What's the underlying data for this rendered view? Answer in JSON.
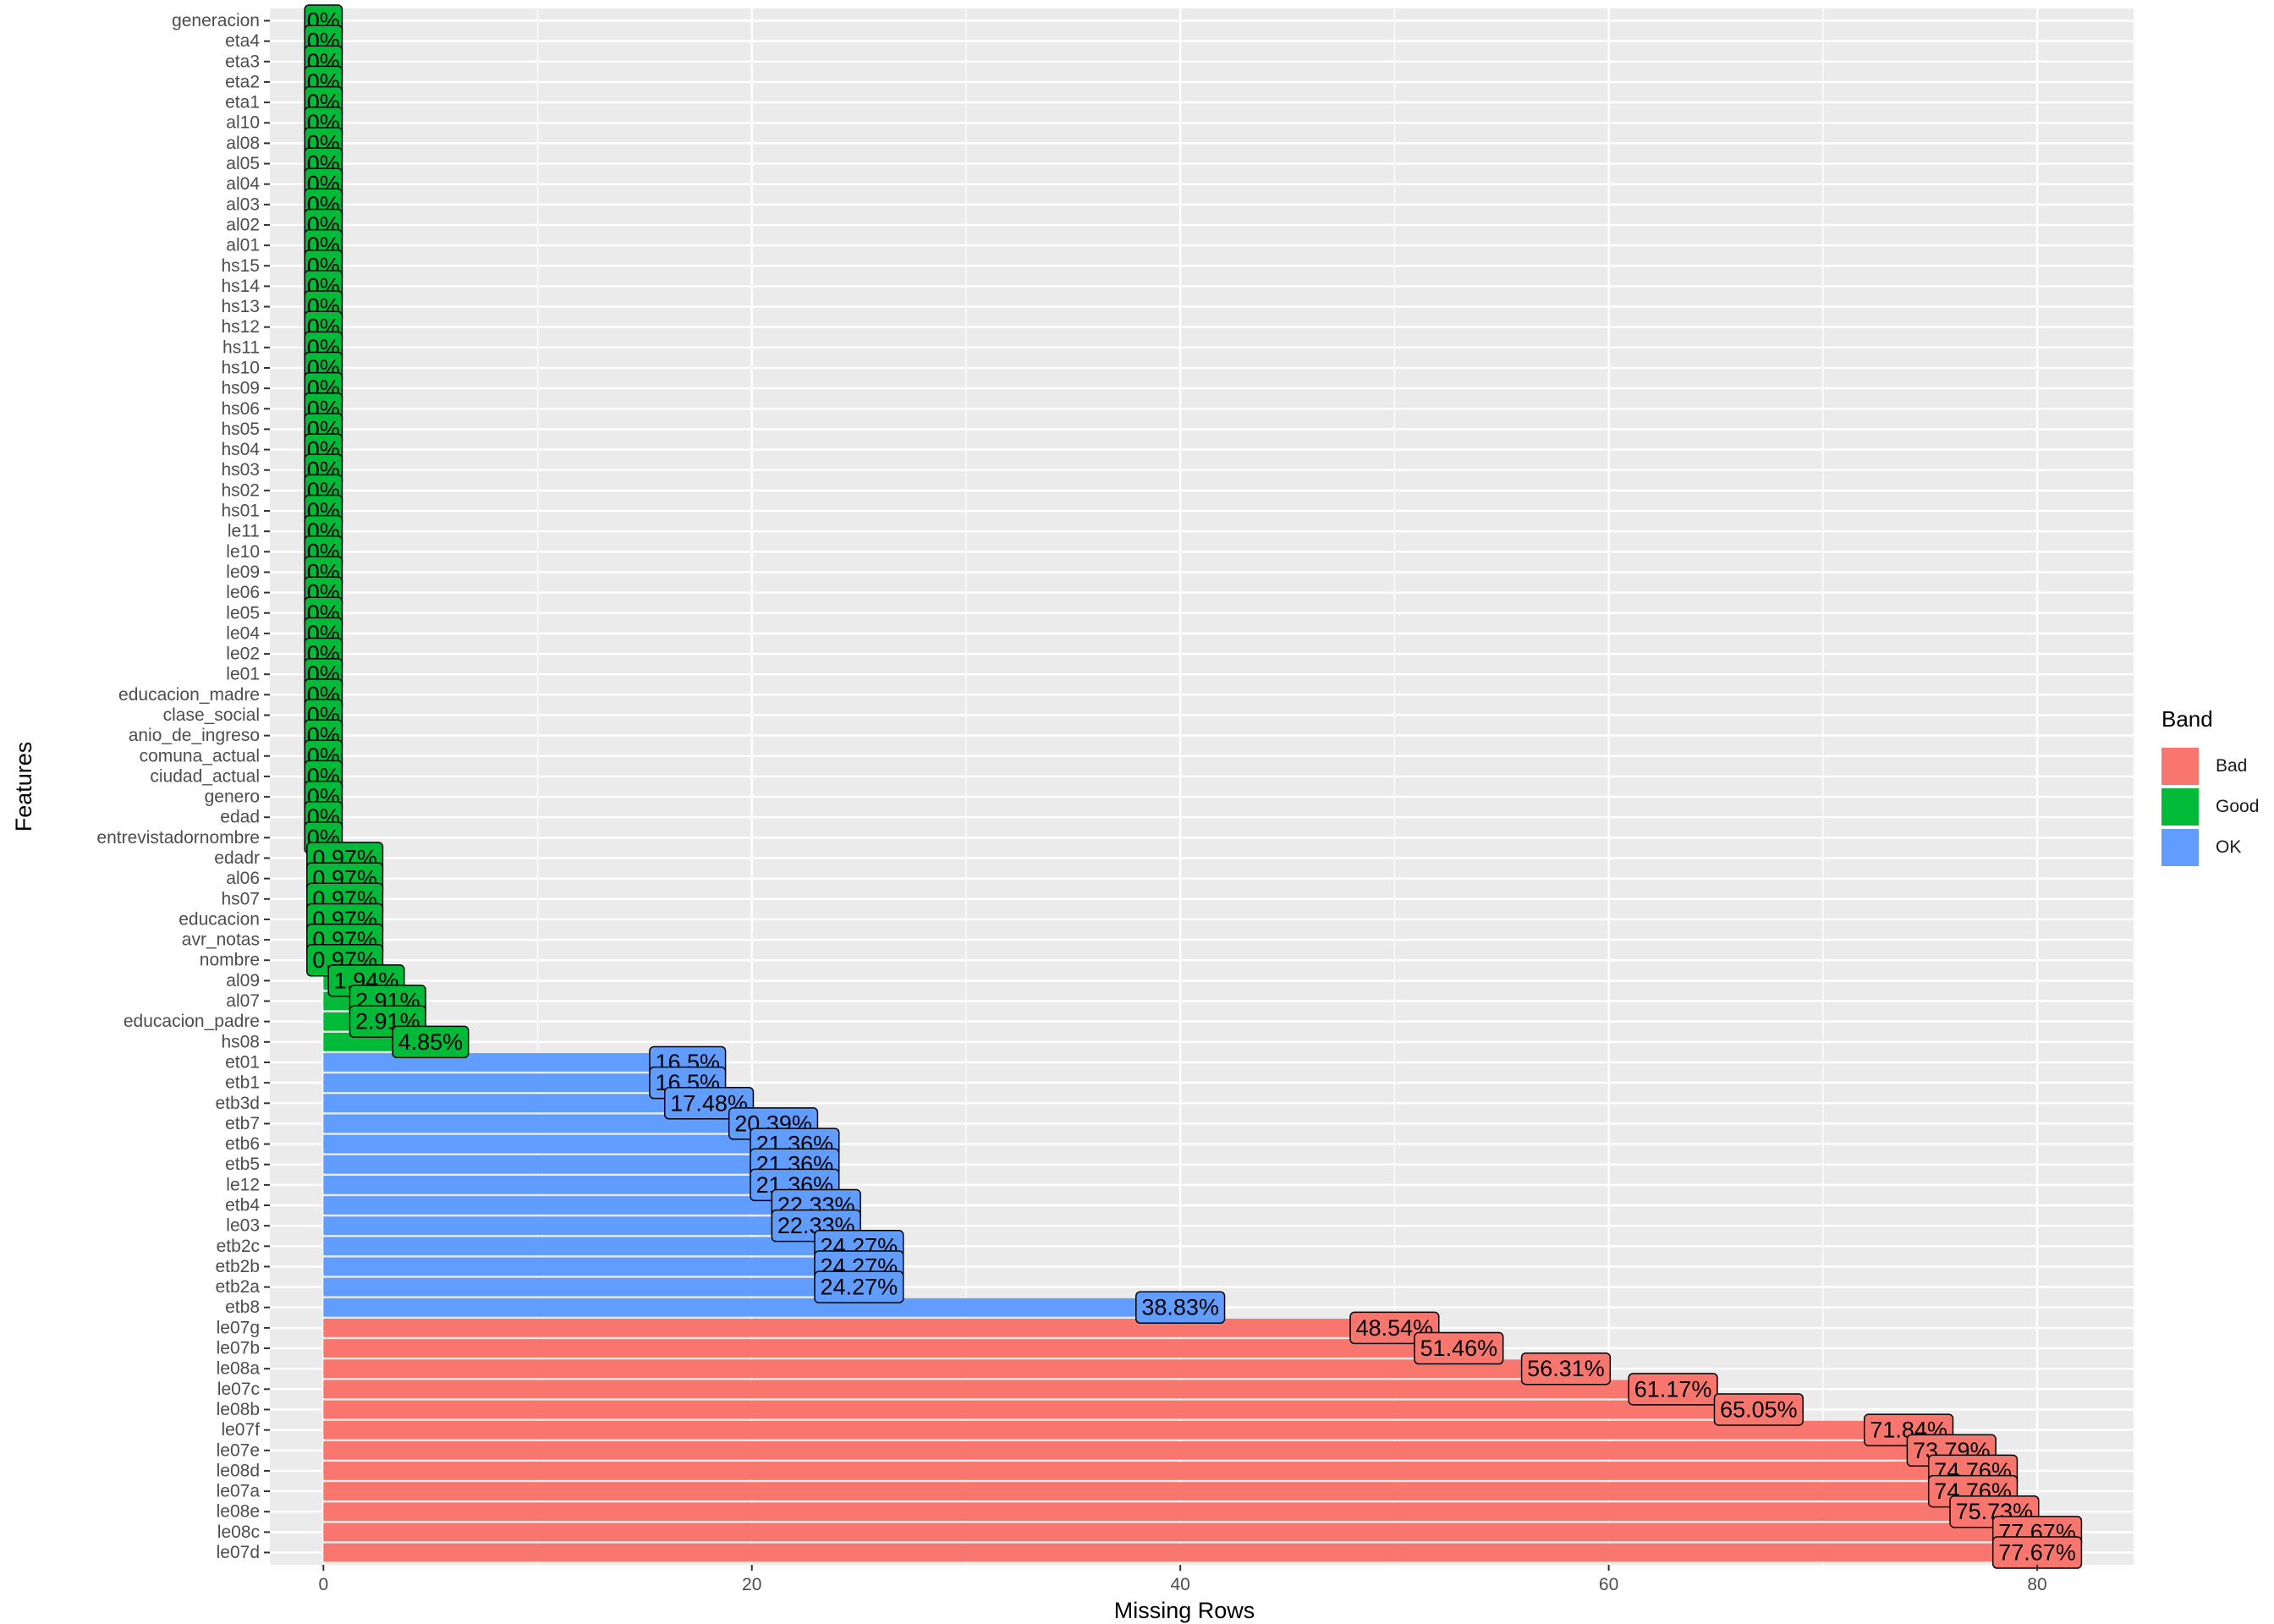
{
  "chart_data": {
    "type": "bar",
    "orientation": "horizontal",
    "xlabel": "Missing Rows",
    "ylabel": "Features",
    "xlim": [
      -2.5,
      84.5
    ],
    "xticks": [
      0,
      20,
      40,
      60,
      80
    ],
    "grid": true,
    "legend": {
      "title": "Band",
      "position": "right"
    },
    "bands": [
      {
        "name": "Bad",
        "color": "#F8766D"
      },
      {
        "name": "Good",
        "color": "#00BA38"
      },
      {
        "name": "OK",
        "color": "#619CFF"
      }
    ],
    "bars": [
      {
        "feature": "generacion",
        "value": 0,
        "label": "0%",
        "band": "Good"
      },
      {
        "feature": "eta4",
        "value": 0,
        "label": "0%",
        "band": "Good"
      },
      {
        "feature": "eta3",
        "value": 0,
        "label": "0%",
        "band": "Good"
      },
      {
        "feature": "eta2",
        "value": 0,
        "label": "0%",
        "band": "Good"
      },
      {
        "feature": "eta1",
        "value": 0,
        "label": "0%",
        "band": "Good"
      },
      {
        "feature": "al10",
        "value": 0,
        "label": "0%",
        "band": "Good"
      },
      {
        "feature": "al08",
        "value": 0,
        "label": "0%",
        "band": "Good"
      },
      {
        "feature": "al05",
        "value": 0,
        "label": "0%",
        "band": "Good"
      },
      {
        "feature": "al04",
        "value": 0,
        "label": "0%",
        "band": "Good"
      },
      {
        "feature": "al03",
        "value": 0,
        "label": "0%",
        "band": "Good"
      },
      {
        "feature": "al02",
        "value": 0,
        "label": "0%",
        "band": "Good"
      },
      {
        "feature": "al01",
        "value": 0,
        "label": "0%",
        "band": "Good"
      },
      {
        "feature": "hs15",
        "value": 0,
        "label": "0%",
        "band": "Good"
      },
      {
        "feature": "hs14",
        "value": 0,
        "label": "0%",
        "band": "Good"
      },
      {
        "feature": "hs13",
        "value": 0,
        "label": "0%",
        "band": "Good"
      },
      {
        "feature": "hs12",
        "value": 0,
        "label": "0%",
        "band": "Good"
      },
      {
        "feature": "hs11",
        "value": 0,
        "label": "0%",
        "band": "Good"
      },
      {
        "feature": "hs10",
        "value": 0,
        "label": "0%",
        "band": "Good"
      },
      {
        "feature": "hs09",
        "value": 0,
        "label": "0%",
        "band": "Good"
      },
      {
        "feature": "hs06",
        "value": 0,
        "label": "0%",
        "band": "Good"
      },
      {
        "feature": "hs05",
        "value": 0,
        "label": "0%",
        "band": "Good"
      },
      {
        "feature": "hs04",
        "value": 0,
        "label": "0%",
        "band": "Good"
      },
      {
        "feature": "hs03",
        "value": 0,
        "label": "0%",
        "band": "Good"
      },
      {
        "feature": "hs02",
        "value": 0,
        "label": "0%",
        "band": "Good"
      },
      {
        "feature": "hs01",
        "value": 0,
        "label": "0%",
        "band": "Good"
      },
      {
        "feature": "le11",
        "value": 0,
        "label": "0%",
        "band": "Good"
      },
      {
        "feature": "le10",
        "value": 0,
        "label": "0%",
        "band": "Good"
      },
      {
        "feature": "le09",
        "value": 0,
        "label": "0%",
        "band": "Good"
      },
      {
        "feature": "le06",
        "value": 0,
        "label": "0%",
        "band": "Good"
      },
      {
        "feature": "le05",
        "value": 0,
        "label": "0%",
        "band": "Good"
      },
      {
        "feature": "le04",
        "value": 0,
        "label": "0%",
        "band": "Good"
      },
      {
        "feature": "le02",
        "value": 0,
        "label": "0%",
        "band": "Good"
      },
      {
        "feature": "le01",
        "value": 0,
        "label": "0%",
        "band": "Good"
      },
      {
        "feature": "educacion_madre",
        "value": 0,
        "label": "0%",
        "band": "Good"
      },
      {
        "feature": "clase_social",
        "value": 0,
        "label": "0%",
        "band": "Good"
      },
      {
        "feature": "anio_de_ingreso",
        "value": 0,
        "label": "0%",
        "band": "Good"
      },
      {
        "feature": "comuna_actual",
        "value": 0,
        "label": "0%",
        "band": "Good"
      },
      {
        "feature": "ciudad_actual",
        "value": 0,
        "label": "0%",
        "band": "Good"
      },
      {
        "feature": "genero",
        "value": 0,
        "label": "0%",
        "band": "Good"
      },
      {
        "feature": "edad",
        "value": 0,
        "label": "0%",
        "band": "Good"
      },
      {
        "feature": "entrevistadornombre",
        "value": 0,
        "label": "0%",
        "band": "Good"
      },
      {
        "feature": "edadr",
        "value": 1,
        "label": "0.97%",
        "band": "Good"
      },
      {
        "feature": "al06",
        "value": 1,
        "label": "0.97%",
        "band": "Good"
      },
      {
        "feature": "hs07",
        "value": 1,
        "label": "0.97%",
        "band": "Good"
      },
      {
        "feature": "educacion",
        "value": 1,
        "label": "0.97%",
        "band": "Good"
      },
      {
        "feature": "avr_notas",
        "value": 1,
        "label": "0.97%",
        "band": "Good"
      },
      {
        "feature": "nombre",
        "value": 1,
        "label": "0.97%",
        "band": "Good"
      },
      {
        "feature": "al09",
        "value": 2,
        "label": "1.94%",
        "band": "Good"
      },
      {
        "feature": "al07",
        "value": 3,
        "label": "2.91%",
        "band": "Good"
      },
      {
        "feature": "educacion_padre",
        "value": 3,
        "label": "2.91%",
        "band": "Good"
      },
      {
        "feature": "hs08",
        "value": 5,
        "label": "4.85%",
        "band": "Good"
      },
      {
        "feature": "et01",
        "value": 17,
        "label": "16.5%",
        "band": "OK"
      },
      {
        "feature": "etb1",
        "value": 17,
        "label": "16.5%",
        "band": "OK"
      },
      {
        "feature": "etb3d",
        "value": 18,
        "label": "17.48%",
        "band": "OK"
      },
      {
        "feature": "etb7",
        "value": 21,
        "label": "20.39%",
        "band": "OK"
      },
      {
        "feature": "etb6",
        "value": 22,
        "label": "21.36%",
        "band": "OK"
      },
      {
        "feature": "etb5",
        "value": 22,
        "label": "21.36%",
        "band": "OK"
      },
      {
        "feature": "le12",
        "value": 22,
        "label": "21.36%",
        "band": "OK"
      },
      {
        "feature": "etb4",
        "value": 23,
        "label": "22.33%",
        "band": "OK"
      },
      {
        "feature": "le03",
        "value": 23,
        "label": "22.33%",
        "band": "OK"
      },
      {
        "feature": "etb2c",
        "value": 25,
        "label": "24.27%",
        "band": "OK"
      },
      {
        "feature": "etb2b",
        "value": 25,
        "label": "24.27%",
        "band": "OK"
      },
      {
        "feature": "etb2a",
        "value": 25,
        "label": "24.27%",
        "band": "OK"
      },
      {
        "feature": "etb8",
        "value": 40,
        "label": "38.83%",
        "band": "OK"
      },
      {
        "feature": "le07g",
        "value": 50,
        "label": "48.54%",
        "band": "Bad"
      },
      {
        "feature": "le07b",
        "value": 53,
        "label": "51.46%",
        "band": "Bad"
      },
      {
        "feature": "le08a",
        "value": 58,
        "label": "56.31%",
        "band": "Bad"
      },
      {
        "feature": "le07c",
        "value": 63,
        "label": "61.17%",
        "band": "Bad"
      },
      {
        "feature": "le08b",
        "value": 67,
        "label": "65.05%",
        "band": "Bad"
      },
      {
        "feature": "le07f",
        "value": 74,
        "label": "71.84%",
        "band": "Bad"
      },
      {
        "feature": "le07e",
        "value": 76,
        "label": "73.79%",
        "band": "Bad"
      },
      {
        "feature": "le08d",
        "value": 77,
        "label": "74.76%",
        "band": "Bad"
      },
      {
        "feature": "le07a",
        "value": 77,
        "label": "74.76%",
        "band": "Bad"
      },
      {
        "feature": "le08e",
        "value": 78,
        "label": "75.73%",
        "band": "Bad"
      },
      {
        "feature": "le08c",
        "value": 80,
        "label": "77.67%",
        "band": "Bad"
      },
      {
        "feature": "le07d",
        "value": 80,
        "label": "77.67%",
        "band": "Bad"
      }
    ]
  }
}
